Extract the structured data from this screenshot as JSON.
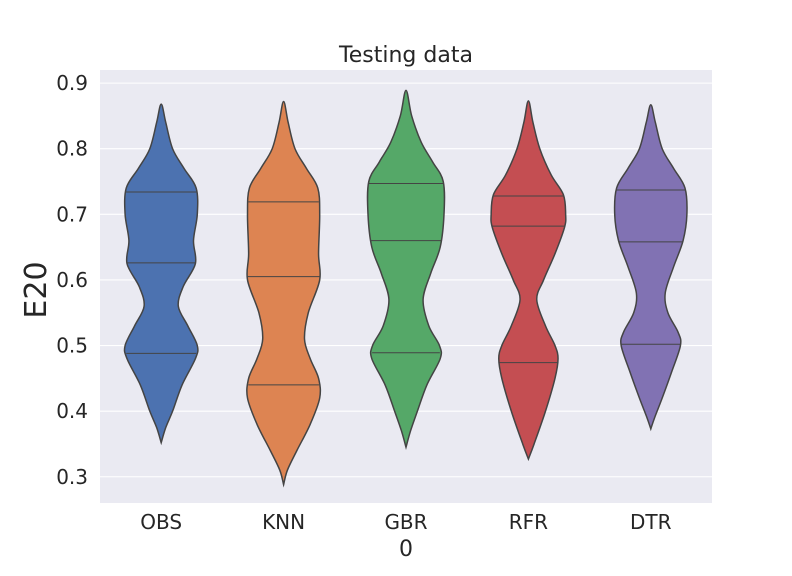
{
  "chart_data": {
    "type": "violin",
    "title": "Testing data",
    "xlabel": "0",
    "ylabel": "E20",
    "ylim": [
      0.26,
      0.92
    ],
    "yticks": [
      0.3,
      0.4,
      0.5,
      0.6,
      0.7,
      0.8,
      0.9
    ],
    "ytick_labels": [
      "0.3",
      "0.4",
      "0.5",
      "0.6",
      "0.7",
      "0.8",
      "0.9"
    ],
    "grid": true,
    "inner": "quartile lines",
    "categories": [
      "OBS",
      "KNN",
      "GBR",
      "RFR",
      "DTR"
    ],
    "series": [
      {
        "category": "OBS",
        "color": "#4c72b0",
        "min": 0.352,
        "max": 0.868,
        "quartiles": [
          0.488,
          0.626,
          0.734
        ],
        "density": [
          [
            0.352,
            0.0
          ],
          [
            0.375,
            0.12
          ],
          [
            0.4,
            0.3
          ],
          [
            0.44,
            0.55
          ],
          [
            0.48,
            0.9
          ],
          [
            0.5,
            0.95
          ],
          [
            0.53,
            0.7
          ],
          [
            0.56,
            0.45
          ],
          [
            0.59,
            0.58
          ],
          [
            0.625,
            0.9
          ],
          [
            0.66,
            0.85
          ],
          [
            0.7,
            0.95
          ],
          [
            0.74,
            0.92
          ],
          [
            0.77,
            0.6
          ],
          [
            0.8,
            0.3
          ],
          [
            0.84,
            0.12
          ],
          [
            0.868,
            0.0
          ]
        ]
      },
      {
        "category": "KNN",
        "color": "#dd8452",
        "min": 0.288,
        "max": 0.872,
        "quartiles": [
          0.44,
          0.605,
          0.719
        ],
        "density": [
          [
            0.288,
            0.0
          ],
          [
            0.31,
            0.1
          ],
          [
            0.34,
            0.35
          ],
          [
            0.38,
            0.7
          ],
          [
            0.42,
            0.95
          ],
          [
            0.45,
            0.92
          ],
          [
            0.48,
            0.7
          ],
          [
            0.51,
            0.55
          ],
          [
            0.55,
            0.65
          ],
          [
            0.6,
            0.95
          ],
          [
            0.64,
            0.92
          ],
          [
            0.7,
            0.95
          ],
          [
            0.74,
            0.9
          ],
          [
            0.77,
            0.6
          ],
          [
            0.8,
            0.3
          ],
          [
            0.84,
            0.12
          ],
          [
            0.872,
            0.0
          ]
        ]
      },
      {
        "category": "GBR",
        "color": "#55a868",
        "min": 0.345,
        "max": 0.889,
        "quartiles": [
          0.489,
          0.66,
          0.747
        ],
        "density": [
          [
            0.345,
            0.0
          ],
          [
            0.37,
            0.12
          ],
          [
            0.4,
            0.3
          ],
          [
            0.44,
            0.55
          ],
          [
            0.48,
            0.9
          ],
          [
            0.5,
            0.88
          ],
          [
            0.53,
            0.6
          ],
          [
            0.57,
            0.45
          ],
          [
            0.61,
            0.65
          ],
          [
            0.65,
            0.9
          ],
          [
            0.7,
            1.0
          ],
          [
            0.75,
            0.98
          ],
          [
            0.78,
            0.7
          ],
          [
            0.81,
            0.4
          ],
          [
            0.85,
            0.15
          ],
          [
            0.889,
            0.0
          ]
        ]
      },
      {
        "category": "RFR",
        "color": "#c44e52",
        "min": 0.327,
        "max": 0.873,
        "quartiles": [
          0.474,
          0.682,
          0.728
        ],
        "density": [
          [
            0.327,
            0.0
          ],
          [
            0.35,
            0.15
          ],
          [
            0.4,
            0.45
          ],
          [
            0.45,
            0.7
          ],
          [
            0.48,
            0.78
          ],
          [
            0.5,
            0.7
          ],
          [
            0.53,
            0.45
          ],
          [
            0.57,
            0.22
          ],
          [
            0.6,
            0.4
          ],
          [
            0.64,
            0.7
          ],
          [
            0.68,
            0.95
          ],
          [
            0.7,
            0.98
          ],
          [
            0.73,
            0.92
          ],
          [
            0.76,
            0.6
          ],
          [
            0.8,
            0.3
          ],
          [
            0.84,
            0.12
          ],
          [
            0.873,
            0.0
          ]
        ]
      },
      {
        "category": "DTR",
        "color": "#8172b3",
        "min": 0.373,
        "max": 0.867,
        "quartiles": [
          0.502,
          0.658,
          0.737
        ],
        "density": [
          [
            0.373,
            0.0
          ],
          [
            0.39,
            0.1
          ],
          [
            0.42,
            0.3
          ],
          [
            0.46,
            0.55
          ],
          [
            0.5,
            0.78
          ],
          [
            0.52,
            0.72
          ],
          [
            0.55,
            0.45
          ],
          [
            0.58,
            0.38
          ],
          [
            0.62,
            0.6
          ],
          [
            0.66,
            0.85
          ],
          [
            0.7,
            0.95
          ],
          [
            0.74,
            0.9
          ],
          [
            0.77,
            0.6
          ],
          [
            0.8,
            0.3
          ],
          [
            0.84,
            0.12
          ],
          [
            0.867,
            0.0
          ]
        ]
      }
    ]
  }
}
